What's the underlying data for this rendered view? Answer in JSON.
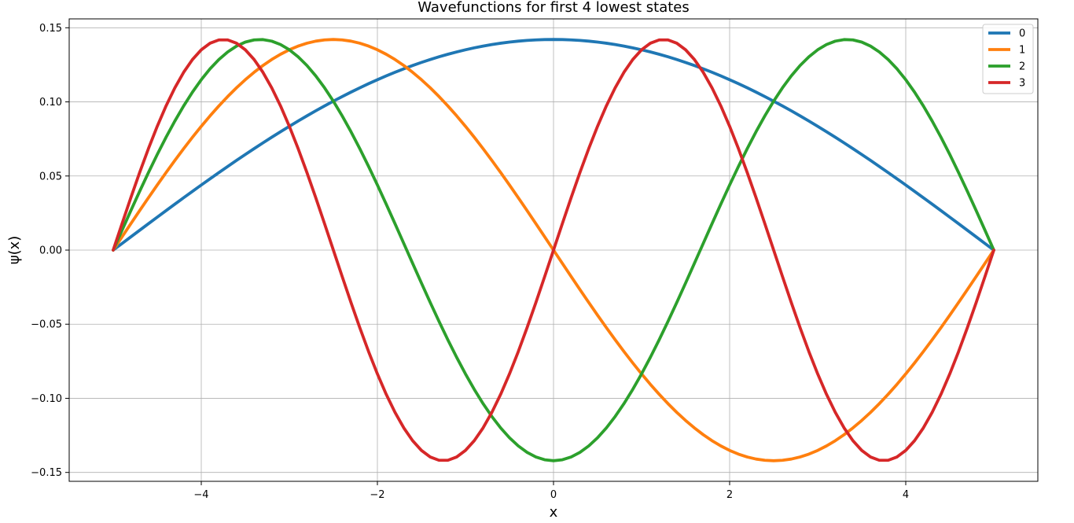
{
  "chart_data": {
    "type": "line",
    "title": "Wavefunctions for first 4 lowest states",
    "xlabel": "x",
    "ylabel": "ψ(x)",
    "xlim": [
      -5.5,
      5.5
    ],
    "ylim": [
      -0.156,
      0.156
    ],
    "x_ticks": [
      -4,
      -2,
      0,
      2,
      4
    ],
    "x_tick_labels": [
      "−4",
      "−2",
      "0",
      "2",
      "4"
    ],
    "y_ticks": [
      -0.15,
      -0.1,
      -0.05,
      0.0,
      0.05,
      0.1,
      0.15
    ],
    "y_tick_labels": [
      "−0.15",
      "−0.10",
      "−0.05",
      "0.00",
      "0.05",
      "0.10",
      "0.15"
    ],
    "grid": true,
    "legend_position": "top-right",
    "x_range": [
      -5,
      5
    ],
    "amplitude": 0.1421,
    "series": [
      {
        "name": "0",
        "color": "#1f77b4",
        "n": 1
      },
      {
        "name": "1",
        "color": "#ff7f0e",
        "n": 2
      },
      {
        "name": "2",
        "color": "#2ca02c",
        "n": 3
      },
      {
        "name": "3",
        "color": "#d62728",
        "n": 4
      }
    ]
  }
}
